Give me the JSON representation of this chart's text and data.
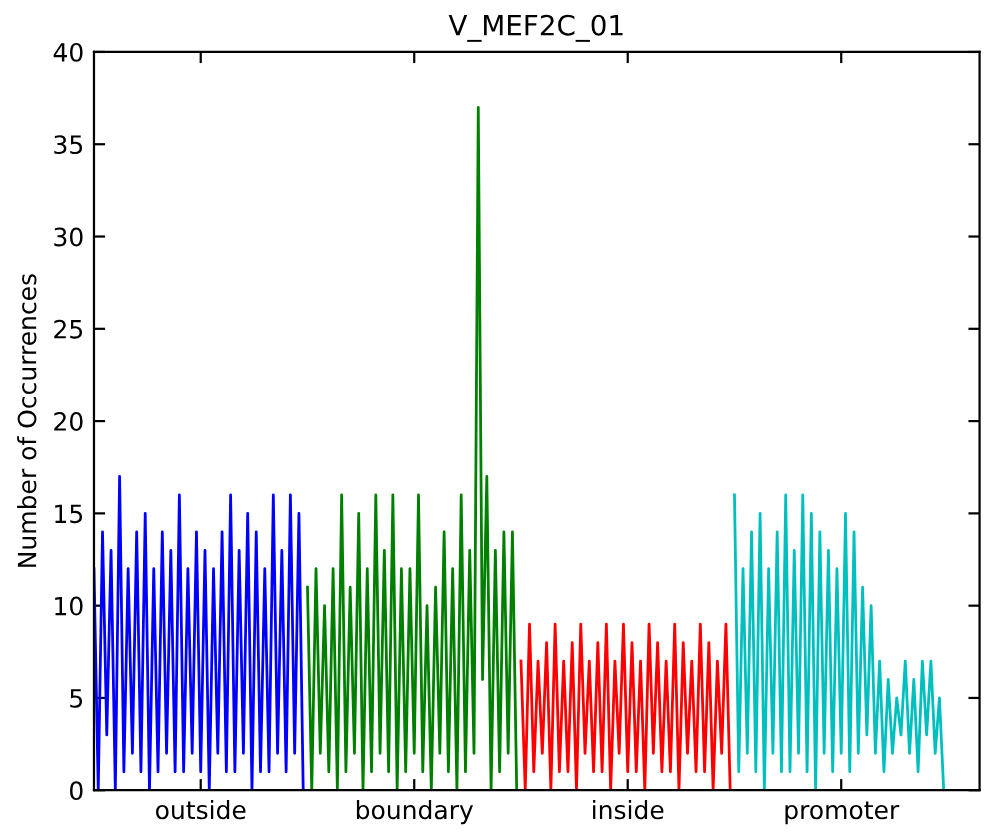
{
  "chart_data": {
    "type": "line",
    "title": "V_MEF2C_01",
    "ylabel": "Number of Occurrences",
    "categories": [
      null,
      null,
      null,
      null,
      null,
      null,
      null,
      null,
      null,
      null,
      null,
      null,
      null,
      null,
      null,
      null,
      null,
      null,
      null,
      null,
      null,
      null,
      null,
      null,
      null,
      "outside",
      null,
      null,
      null,
      null,
      null,
      null,
      null,
      null,
      null,
      null,
      null,
      null,
      null,
      null,
      null,
      null,
      null,
      null,
      null,
      null,
      null,
      null,
      null,
      null,
      null,
      null,
      null,
      null,
      null,
      null,
      null,
      null,
      null,
      null,
      null,
      null,
      null,
      null,
      null,
      null,
      null,
      null,
      null,
      null,
      null,
      null,
      null,
      null,
      null,
      "boundary",
      null,
      null,
      null,
      null,
      null,
      null,
      null,
      null,
      null,
      null,
      null,
      null,
      null,
      null,
      null,
      null,
      null,
      null,
      null,
      null,
      null,
      null,
      null,
      null,
      null,
      null,
      null,
      null,
      null,
      null,
      null,
      null,
      null,
      null,
      null,
      null,
      null,
      null,
      null,
      null,
      null,
      null,
      null,
      null,
      null,
      null,
      null,
      null,
      null,
      "inside",
      null,
      null,
      null,
      null,
      null,
      null,
      null,
      null,
      null,
      null,
      null,
      null,
      null,
      null,
      null,
      null,
      null,
      null,
      null,
      null,
      null,
      null,
      null,
      null,
      null,
      null,
      null,
      null,
      null,
      null,
      null,
      null,
      null,
      null,
      null,
      null,
      null,
      null,
      null,
      null,
      null,
      null,
      null,
      null,
      null,
      null,
      null,
      null,
      null,
      "promoter",
      null,
      null,
      null,
      null,
      null,
      null,
      null,
      null,
      null,
      null,
      null,
      null,
      null,
      null,
      null,
      null,
      null,
      null,
      null,
      null,
      null,
      null,
      null,
      null
    ],
    "ylim": [
      0,
      40
    ],
    "yticks": [
      0,
      5,
      10,
      15,
      20,
      25,
      30,
      35,
      40
    ],
    "grid": false,
    "marker": "none",
    "line_style": "solid",
    "series": [
      {
        "color": "#0000ff",
        "values": [
          12,
          0,
          14,
          3,
          13,
          0,
          17,
          1,
          12,
          2,
          14,
          1,
          15,
          0,
          12,
          1,
          14,
          2,
          13,
          1,
          16,
          1,
          12,
          2,
          14,
          1,
          13,
          0,
          12,
          2,
          14,
          1,
          16,
          1,
          13,
          2,
          15,
          0,
          14,
          1,
          12,
          1,
          16,
          2,
          13,
          1,
          16,
          2,
          15,
          0,
          null,
          null,
          null,
          null,
          null,
          null,
          null,
          null,
          null,
          null,
          null,
          null,
          null,
          null,
          null,
          null,
          null,
          null,
          null,
          null,
          null,
          null,
          null,
          null,
          null,
          null,
          null,
          null,
          null,
          null,
          null,
          null,
          null,
          null,
          null,
          null,
          null,
          null,
          null,
          null,
          null,
          null,
          null,
          null,
          null,
          null,
          null,
          null,
          null,
          null,
          null,
          null,
          null,
          null,
          null,
          null,
          null,
          null,
          null,
          null,
          null,
          null,
          null,
          null,
          null,
          null,
          null,
          null,
          null,
          null,
          null,
          null,
          null,
          null,
          null,
          null,
          null,
          null,
          null,
          null,
          null,
          null,
          null,
          null,
          null,
          null,
          null,
          null,
          null,
          null,
          null,
          null,
          null,
          null,
          null,
          null,
          null,
          null,
          null,
          null,
          null,
          null,
          null,
          null,
          null,
          null,
          null,
          null,
          null,
          null,
          null,
          null,
          null,
          null,
          null,
          null,
          null,
          null,
          null,
          null,
          null,
          null,
          null,
          null,
          null,
          null,
          null,
          null,
          null,
          null,
          null,
          null,
          null,
          null,
          null,
          null,
          null,
          null,
          null,
          null,
          null,
          null,
          null,
          null,
          null,
          null,
          null,
          null,
          null,
          null
        ]
      },
      {
        "color": "#008000",
        "values": [
          null,
          null,
          null,
          null,
          null,
          null,
          null,
          null,
          null,
          null,
          null,
          null,
          null,
          null,
          null,
          null,
          null,
          null,
          null,
          null,
          null,
          null,
          null,
          null,
          null,
          null,
          null,
          null,
          null,
          null,
          null,
          null,
          null,
          null,
          null,
          null,
          null,
          null,
          null,
          null,
          null,
          null,
          null,
          null,
          null,
          null,
          null,
          null,
          null,
          null,
          11,
          0,
          12,
          2,
          10,
          1,
          12,
          0,
          16,
          1,
          11,
          2,
          15,
          0,
          12,
          1,
          16,
          2,
          13,
          1,
          16,
          0,
          12,
          1,
          12,
          2,
          16,
          1,
          10,
          0,
          11,
          2,
          14,
          1,
          12,
          0,
          16,
          1,
          13,
          2,
          37,
          6,
          17,
          0,
          13,
          1,
          14,
          2,
          14,
          0,
          null,
          null,
          null,
          null,
          null,
          null,
          null,
          null,
          null,
          null,
          null,
          null,
          null,
          null,
          null,
          null,
          null,
          null,
          null,
          null,
          null,
          null,
          null,
          null,
          null,
          null,
          null,
          null,
          null,
          null,
          null,
          null,
          null,
          null,
          null,
          null,
          null,
          null,
          null,
          null,
          null,
          null,
          null,
          null,
          null,
          null,
          null,
          null,
          null,
          null,
          null,
          null,
          null,
          null,
          null,
          null,
          null,
          null,
          null,
          null,
          null,
          null,
          null,
          null,
          null,
          null,
          null,
          null,
          null,
          null,
          null,
          null,
          null,
          null,
          null,
          null,
          null,
          null,
          null,
          null,
          null,
          null,
          null,
          null,
          null,
          null,
          null,
          null,
          null,
          null,
          null,
          null,
          null,
          null,
          null,
          null,
          null,
          null,
          null,
          null
        ]
      },
      {
        "color": "#ff0000",
        "values": [
          null,
          null,
          null,
          null,
          null,
          null,
          null,
          null,
          null,
          null,
          null,
          null,
          null,
          null,
          null,
          null,
          null,
          null,
          null,
          null,
          null,
          null,
          null,
          null,
          null,
          null,
          null,
          null,
          null,
          null,
          null,
          null,
          null,
          null,
          null,
          null,
          null,
          null,
          null,
          null,
          null,
          null,
          null,
          null,
          null,
          null,
          null,
          null,
          null,
          null,
          null,
          null,
          null,
          null,
          null,
          null,
          null,
          null,
          null,
          null,
          null,
          null,
          null,
          null,
          null,
          null,
          null,
          null,
          null,
          null,
          null,
          null,
          null,
          null,
          null,
          null,
          null,
          null,
          null,
          null,
          null,
          null,
          null,
          null,
          null,
          null,
          null,
          null,
          null,
          null,
          null,
          null,
          null,
          null,
          null,
          null,
          null,
          null,
          null,
          null,
          7,
          0,
          9,
          1,
          7,
          2,
          8,
          0,
          9,
          1,
          7,
          1,
          8,
          0,
          9,
          2,
          7,
          1,
          8,
          1,
          9,
          0,
          7,
          2,
          9,
          1,
          8,
          1,
          7,
          0,
          9,
          2,
          8,
          1,
          7,
          1,
          9,
          0,
          8,
          2,
          7,
          1,
          9,
          1,
          8,
          0,
          7,
          2,
          9,
          0,
          null,
          null,
          null,
          null,
          null,
          null,
          null,
          null,
          null,
          null,
          null,
          null,
          null,
          null,
          null,
          null,
          null,
          null,
          null,
          null,
          null,
          null,
          null,
          null,
          null,
          null,
          null,
          null,
          null,
          null,
          null,
          null,
          null,
          null,
          null,
          null,
          null,
          null,
          null,
          null,
          null,
          null,
          null,
          null,
          null,
          null,
          null,
          null,
          null,
          null
        ]
      },
      {
        "color": "#00bfbf",
        "values": [
          null,
          null,
          null,
          null,
          null,
          null,
          null,
          null,
          null,
          null,
          null,
          null,
          null,
          null,
          null,
          null,
          null,
          null,
          null,
          null,
          null,
          null,
          null,
          null,
          null,
          null,
          null,
          null,
          null,
          null,
          null,
          null,
          null,
          null,
          null,
          null,
          null,
          null,
          null,
          null,
          null,
          null,
          null,
          null,
          null,
          null,
          null,
          null,
          null,
          null,
          null,
          null,
          null,
          null,
          null,
          null,
          null,
          null,
          null,
          null,
          null,
          null,
          null,
          null,
          null,
          null,
          null,
          null,
          null,
          null,
          null,
          null,
          null,
          null,
          null,
          null,
          null,
          null,
          null,
          null,
          null,
          null,
          null,
          null,
          null,
          null,
          null,
          null,
          null,
          null,
          null,
          null,
          null,
          null,
          null,
          null,
          null,
          null,
          null,
          null,
          null,
          null,
          null,
          null,
          null,
          null,
          null,
          null,
          null,
          null,
          null,
          null,
          null,
          null,
          null,
          null,
          null,
          null,
          null,
          null,
          null,
          null,
          null,
          null,
          null,
          null,
          null,
          null,
          null,
          null,
          null,
          null,
          null,
          null,
          null,
          null,
          null,
          null,
          null,
          null,
          null,
          null,
          null,
          null,
          null,
          null,
          null,
          null,
          null,
          null,
          16,
          1,
          12,
          2,
          14,
          1,
          15,
          0,
          12,
          2,
          14,
          1,
          16,
          1,
          13,
          2,
          16,
          1,
          15,
          0,
          14,
          2,
          13,
          1,
          12,
          2,
          15,
          1,
          14,
          2,
          11,
          3,
          10,
          2,
          7,
          1,
          6,
          2,
          5,
          3,
          7,
          2,
          6,
          1,
          7,
          3,
          7,
          2,
          5,
          0
        ]
      }
    ]
  }
}
